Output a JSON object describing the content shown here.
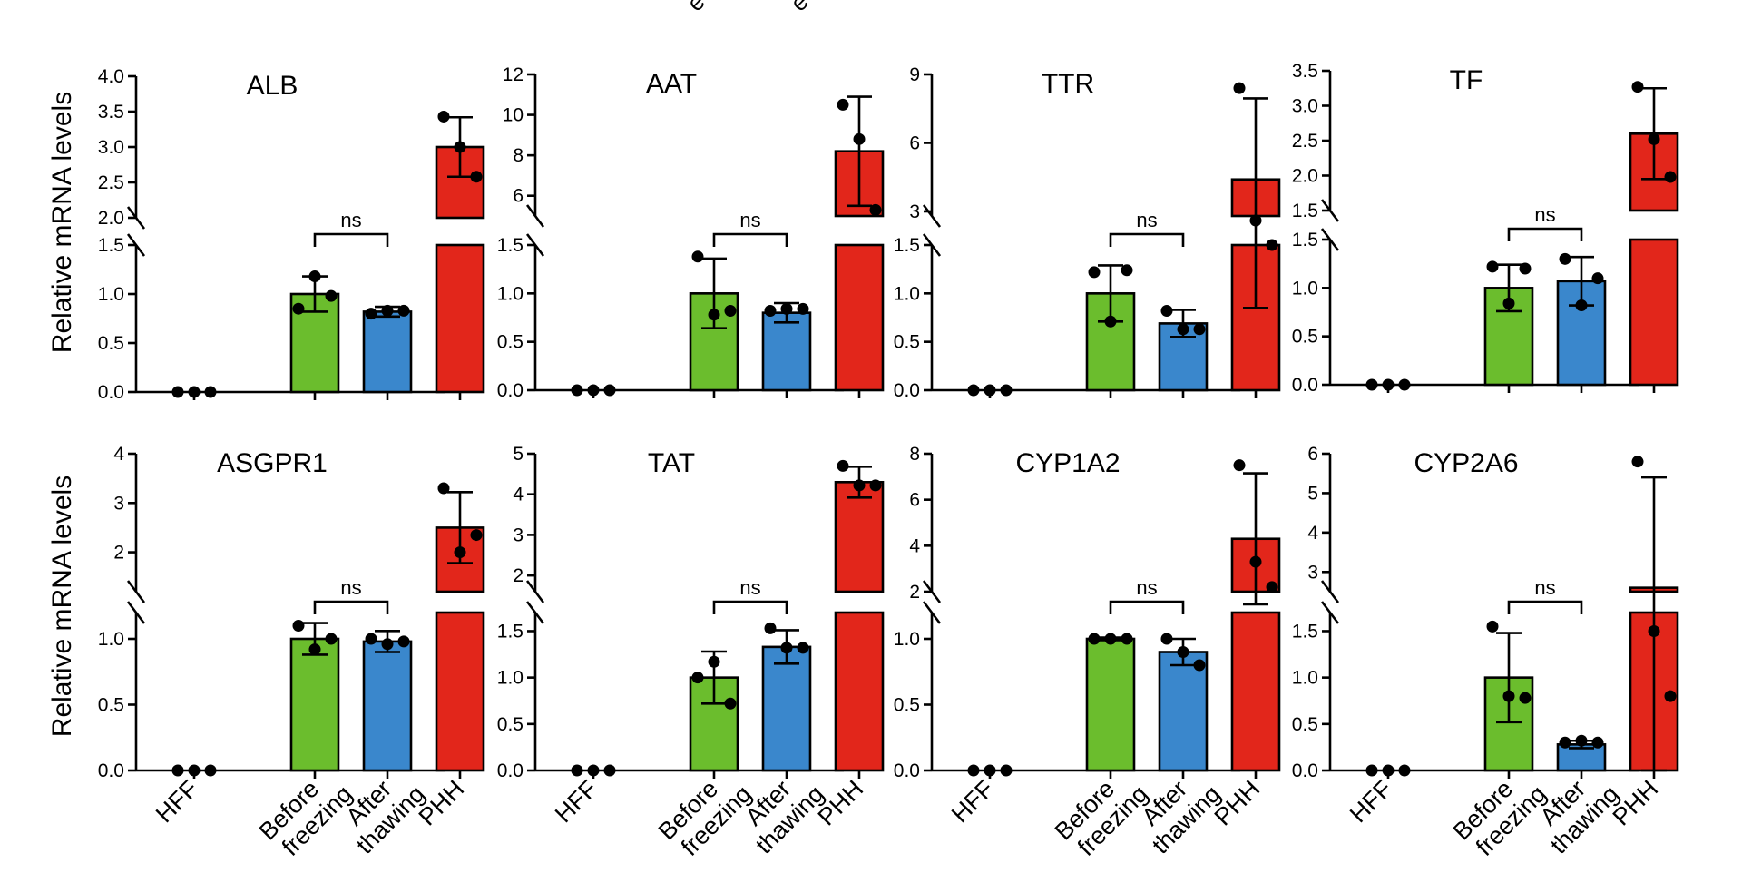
{
  "y_axis_label": "Relative mRNA levels",
  "bracket_label": "ns",
  "top_caption_fragments": [
    "e",
    "e"
  ],
  "colors": {
    "HFF": "#000000",
    "Before freezing": "#6bbd2d",
    "After thawing": "#3a87cc",
    "PHH": "#e2261b"
  },
  "chart_data": [
    {
      "type": "bar",
      "title": "ALB",
      "categories": [
        "HFF",
        "Before\nfreezing",
        "After\nthawing",
        "PHH"
      ],
      "values": [
        0,
        1.0,
        0.82,
        3.0
      ],
      "error": [
        0,
        0.18,
        0.05,
        0.42
      ],
      "points": [
        [
          0.0,
          0.0,
          0.0
        ],
        [
          0.85,
          1.18,
          0.98
        ],
        [
          0.8,
          0.83,
          0.83
        ],
        [
          3.43,
          3.0,
          2.58
        ]
      ],
      "lower": {
        "range": [
          0,
          1.5
        ],
        "ticks": [
          "0.0",
          "0.5",
          "1.0",
          "1.5"
        ]
      },
      "upper": {
        "range": [
          2.0,
          4.0
        ],
        "ticks": [
          "2.0",
          "2.5",
          "3.0",
          "3.5",
          "4.0"
        ]
      },
      "significance": "ns"
    },
    {
      "type": "bar",
      "title": "AAT",
      "categories": [
        "HFF",
        "Before\nfreezing",
        "After\nthawing",
        "PHH"
      ],
      "values": [
        0,
        1.0,
        0.8,
        8.2
      ],
      "error": [
        0,
        0.36,
        0.1,
        2.7
      ],
      "points": [
        [
          0.0,
          0.0,
          0.0
        ],
        [
          1.38,
          0.78,
          0.82
        ],
        [
          0.82,
          0.84,
          0.84
        ],
        [
          10.5,
          8.8,
          5.3
        ]
      ],
      "lower": {
        "range": [
          0,
          1.5
        ],
        "ticks": [
          "0.0",
          "0.5",
          "1.0",
          "1.5"
        ]
      },
      "upper": {
        "range": [
          5,
          12
        ],
        "ticks": [
          "6",
          "8",
          "10",
          "12"
        ]
      },
      "significance": "ns"
    },
    {
      "type": "bar",
      "title": "TTR",
      "categories": [
        "HFF",
        "Before\nfreezing",
        "After\nthawing",
        "PHH"
      ],
      "values": [
        0,
        1.0,
        0.69,
        4.4
      ],
      "error": [
        0,
        0.29,
        0.14,
        3.55
      ],
      "points": [
        [
          0.0,
          0.0,
          0.0
        ],
        [
          1.22,
          0.71,
          1.24
        ],
        [
          0.82,
          0.63,
          0.63
        ],
        [
          8.4,
          2.6,
          1.5
        ]
      ],
      "lower": {
        "range": [
          0,
          1.5
        ],
        "ticks": [
          "0.0",
          "0.5",
          "1.0",
          "1.5"
        ]
      },
      "upper": {
        "range": [
          2.8,
          9
        ],
        "ticks": [
          "3",
          "6",
          "9"
        ]
      },
      "significance": "ns"
    },
    {
      "type": "bar",
      "title": "TF",
      "categories": [
        "HFF",
        "Before\nfreezing",
        "After\nthawing",
        "PHH"
      ],
      "values": [
        0,
        1.0,
        1.07,
        2.6
      ],
      "error": [
        0,
        0.24,
        0.25,
        0.65
      ],
      "points": [
        [
          0.0,
          0.0,
          0.0
        ],
        [
          1.22,
          0.84,
          1.2
        ],
        [
          1.3,
          0.82,
          1.1
        ],
        [
          3.27,
          2.52,
          1.98
        ]
      ],
      "lower": {
        "range": [
          0,
          1.5
        ],
        "ticks": [
          "0.0",
          "0.5",
          "1.0",
          "1.5"
        ]
      },
      "upper": {
        "range": [
          1.5,
          3.5
        ],
        "ticks": [
          "1.5",
          "2.0",
          "2.5",
          "3.0",
          "3.5"
        ]
      },
      "significance": "ns"
    },
    {
      "type": "bar",
      "title": "ASGPR1",
      "categories": [
        "HFF",
        "Before\nfreezing",
        "After\nthawing",
        "PHH"
      ],
      "values": [
        0,
        1.0,
        0.98,
        2.5
      ],
      "error": [
        0,
        0.12,
        0.08,
        0.72
      ],
      "points": [
        [
          0.0,
          0.0,
          0.0
        ],
        [
          1.1,
          0.92,
          1.0
        ],
        [
          1.0,
          0.96,
          0.98
        ],
        [
          3.3,
          2.0,
          2.35
        ]
      ],
      "lower": {
        "range": [
          0,
          1.2
        ],
        "ticks": [
          "0.0",
          "0.5",
          "1.0"
        ]
      },
      "upper": {
        "range": [
          1.2,
          4
        ],
        "ticks": [
          "2",
          "3",
          "4"
        ]
      },
      "significance": "ns"
    },
    {
      "type": "bar",
      "title": "TAT",
      "categories": [
        "HFF",
        "Before\nfreezing",
        "After\nthawing",
        "PHH"
      ],
      "values": [
        0,
        1.0,
        1.33,
        4.3
      ],
      "error": [
        0,
        0.28,
        0.18,
        0.38
      ],
      "points": [
        [
          0.0,
          0.0,
          0.0
        ],
        [
          1.0,
          1.17,
          0.72
        ],
        [
          1.53,
          1.32,
          1.32
        ],
        [
          4.7,
          4.22,
          4.22
        ]
      ],
      "lower": {
        "range": [
          0,
          1.7
        ],
        "ticks": [
          "0.0",
          "0.5",
          "1.0",
          "1.5"
        ]
      },
      "upper": {
        "range": [
          1.6,
          5
        ],
        "ticks": [
          "2",
          "3",
          "4",
          "5"
        ]
      },
      "significance": "ns"
    },
    {
      "type": "bar",
      "title": "CYP1A2",
      "categories": [
        "HFF",
        "Before\nfreezing",
        "After\nthawing",
        "PHH"
      ],
      "values": [
        0,
        1.0,
        0.9,
        4.3
      ],
      "error": [
        0,
        0.01,
        0.1,
        2.85
      ],
      "points": [
        [
          0.0,
          0.0,
          0.0
        ],
        [
          1.0,
          1.0,
          1.0
        ],
        [
          1.0,
          0.9,
          0.8
        ],
        [
          7.5,
          3.3,
          2.2
        ]
      ],
      "lower": {
        "range": [
          0,
          1.2
        ],
        "ticks": [
          "0.0",
          "0.5",
          "1.0"
        ]
      },
      "upper": {
        "range": [
          2,
          8
        ],
        "ticks": [
          "2",
          "4",
          "6",
          "8"
        ]
      },
      "significance": "ns"
    },
    {
      "type": "bar",
      "title": "CYP2A6",
      "categories": [
        "HFF",
        "Before\nfreezing",
        "After\nthawing",
        "PHH"
      ],
      "values": [
        0,
        1.0,
        0.28,
        2.6
      ],
      "error": [
        0,
        0.48,
        0.04,
        2.8
      ],
      "points": [
        [
          0.0,
          0.0,
          0.0
        ],
        [
          1.55,
          0.8,
          0.78
        ],
        [
          0.3,
          0.32,
          0.3
        ],
        [
          5.8,
          1.5,
          0.8
        ]
      ],
      "lower": {
        "range": [
          0,
          1.7
        ],
        "ticks": [
          "0.0",
          "0.5",
          "1.0",
          "1.5"
        ]
      },
      "upper": {
        "range": [
          2.5,
          6
        ],
        "ticks": [
          "3",
          "4",
          "5",
          "6"
        ]
      },
      "significance": "ns"
    }
  ]
}
